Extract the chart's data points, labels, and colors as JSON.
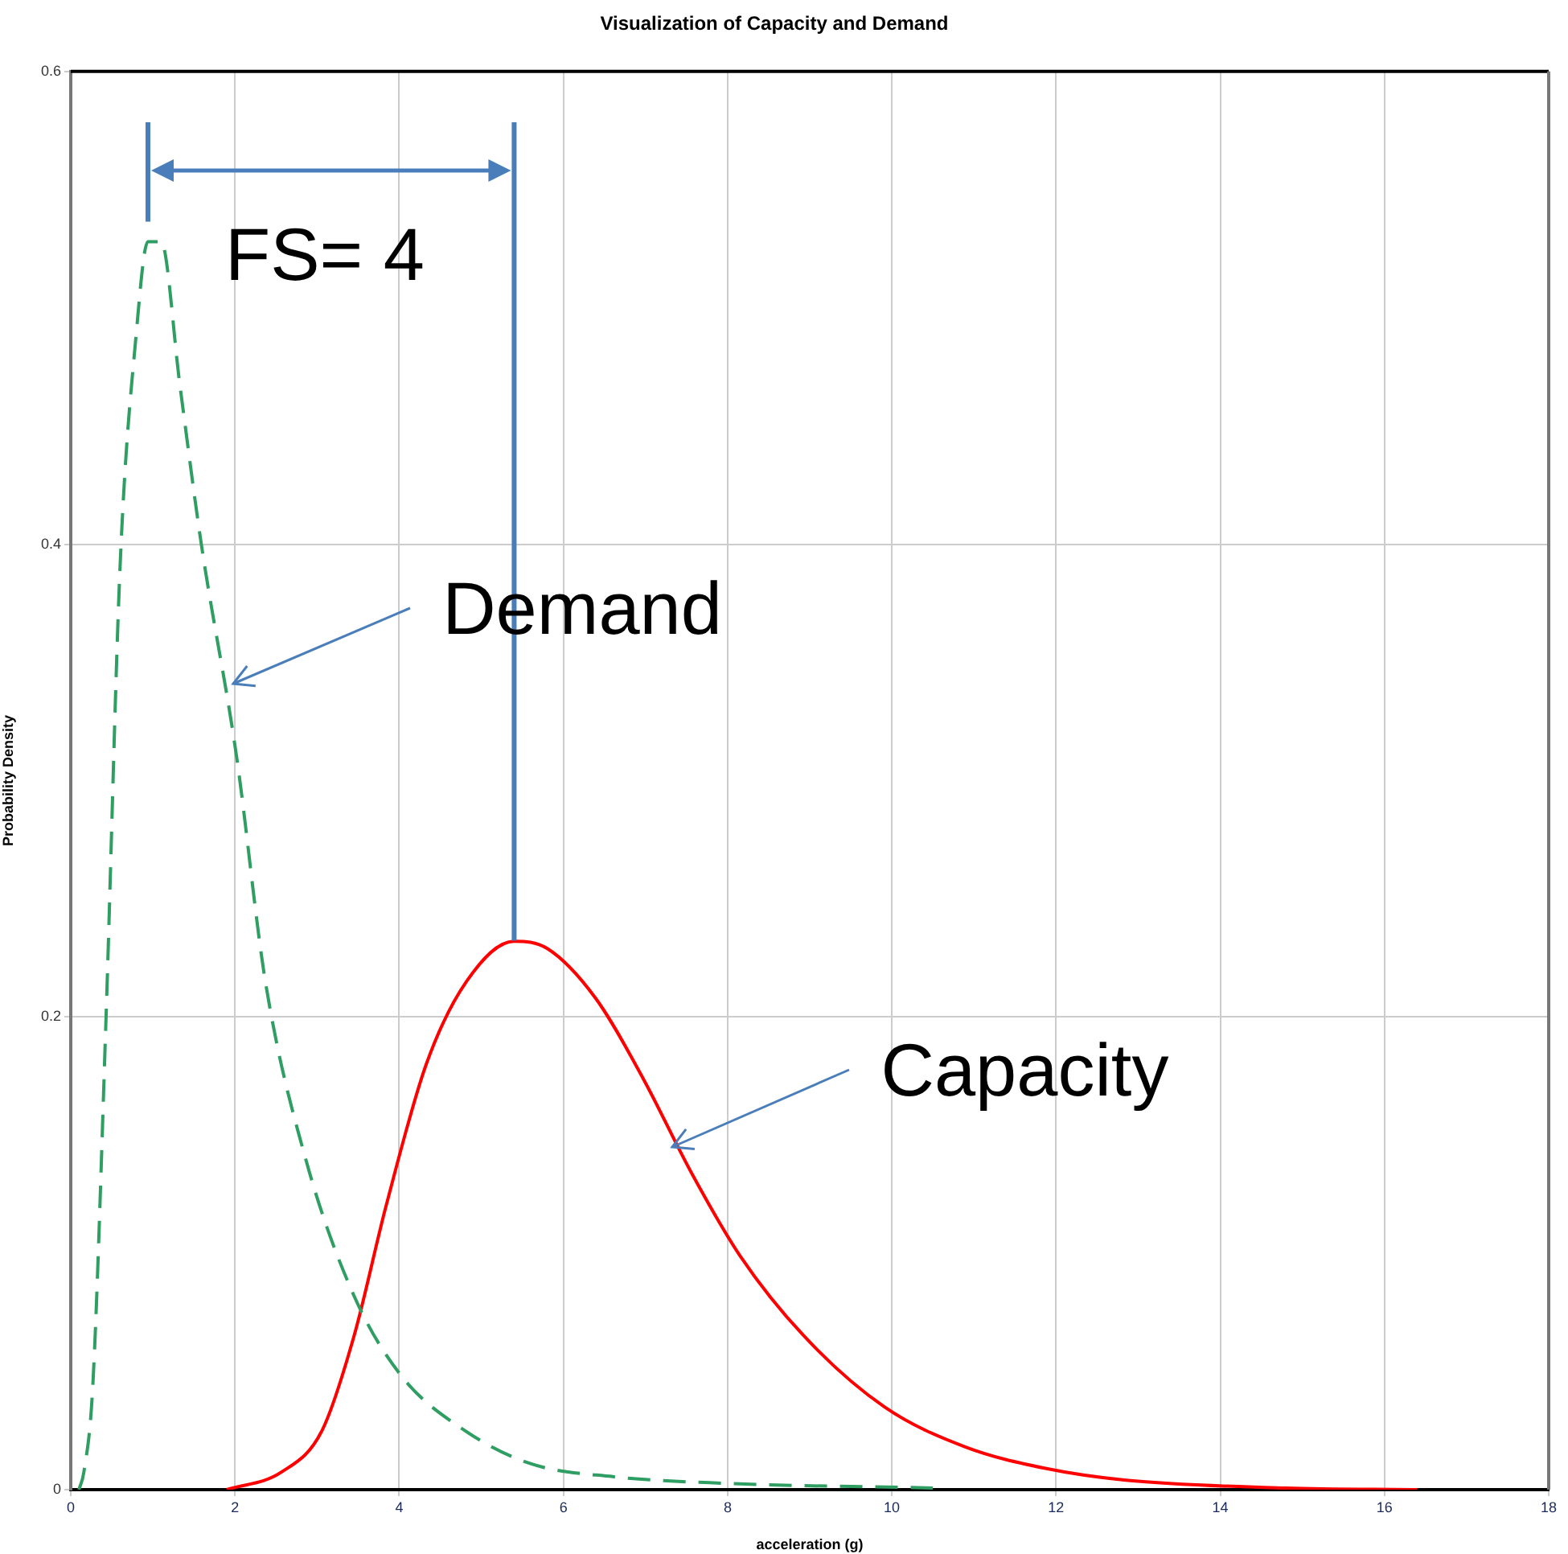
{
  "chart_data": {
    "type": "line",
    "title": "Visualization of Capacity and Demand",
    "xlabel": "acceleration (g)",
    "ylabel": "Probability Density",
    "xlim": [
      0,
      18
    ],
    "xticks": [
      0,
      2,
      4,
      6,
      8,
      10,
      12,
      14,
      16,
      18
    ],
    "ylim": [
      0,
      0.6
    ],
    "yticks": [
      0,
      0.2,
      0.4,
      0.6
    ],
    "grid": true,
    "legend": false,
    "marker": "none",
    "series": [
      {
        "color": "#2e9e62",
        "line_style": "dashed",
        "x": [
          0.1,
          0.16,
          0.27,
          0.43,
          0.6,
          0.8,
          0.94,
          1.1,
          1.33,
          1.59,
          2.02,
          2.37,
          2.86,
          3.45,
          4.03,
          4.8,
          5.6,
          6.6,
          7.95,
          10.5
        ],
        "values": [
          0,
          0.0075,
          0.045,
          0.2,
          0.39,
          0.49,
          0.528,
          0.528,
          0.467,
          0.4,
          0.31,
          0.215,
          0.14,
          0.082,
          0.048,
          0.025,
          0.011,
          0.0055,
          0.0027,
          0.0007
        ]
      },
      {
        "color": "#ff0000",
        "line_style": "solid",
        "x": [
          1.9,
          2.57,
          3.06,
          3.45,
          3.84,
          4.33,
          4.82,
          5.4,
          5.8,
          6.39,
          6.97,
          7.56,
          8.15,
          8.93,
          9.91,
          10.9,
          11.87,
          12.85,
          14.8,
          16.4
        ],
        "values": [
          0,
          0.0075,
          0.025,
          0.065,
          0.12,
          0.18,
          0.215,
          0.232,
          0.229,
          0.208,
          0.174,
          0.134,
          0.099,
          0.065,
          0.035,
          0.018,
          0.009,
          0.004,
          0.0007,
          0
        ]
      }
    ],
    "annotations": [
      {
        "text": "Demand",
        "x": 1.98,
        "y": 0.341
      },
      {
        "text": "Capacity",
        "x": 7.32,
        "y": 0.145
      },
      "FS= 4"
    ]
  }
}
